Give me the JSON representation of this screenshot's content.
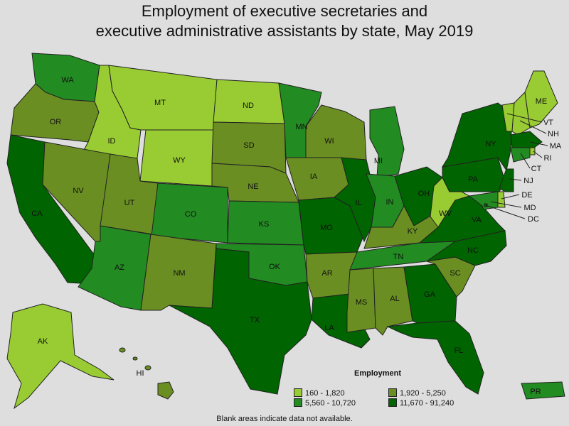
{
  "title_line1": "Employment of executive secretaries and",
  "title_line2": "executive administrative assistants by state, May 2019",
  "legend": {
    "title": "Employment",
    "bins": [
      {
        "label": "160 - 1,820",
        "color": "#99cc33"
      },
      {
        "label": "1,920 - 5,250",
        "color": "#6b8e23"
      },
      {
        "label": "5,560 - 10,720",
        "color": "#228b22"
      },
      {
        "label": "11,670 - 91,240",
        "color": "#006400"
      }
    ]
  },
  "footnote": "Blank areas indicate data not available.",
  "states": [
    {
      "abbr": "WA",
      "bin": 2
    },
    {
      "abbr": "OR",
      "bin": 1
    },
    {
      "abbr": "CA",
      "bin": 3
    },
    {
      "abbr": "ID",
      "bin": 0
    },
    {
      "abbr": "NV",
      "bin": 1
    },
    {
      "abbr": "MT",
      "bin": 0
    },
    {
      "abbr": "WY",
      "bin": 0
    },
    {
      "abbr": "UT",
      "bin": 1
    },
    {
      "abbr": "AZ",
      "bin": 2
    },
    {
      "abbr": "CO",
      "bin": 2
    },
    {
      "abbr": "NM",
      "bin": 1
    },
    {
      "abbr": "ND",
      "bin": 0
    },
    {
      "abbr": "SD",
      "bin": 1
    },
    {
      "abbr": "NE",
      "bin": 1
    },
    {
      "abbr": "KS",
      "bin": 2
    },
    {
      "abbr": "OK",
      "bin": 2
    },
    {
      "abbr": "TX",
      "bin": 3
    },
    {
      "abbr": "MN",
      "bin": 2
    },
    {
      "abbr": "IA",
      "bin": 1
    },
    {
      "abbr": "MO",
      "bin": 3
    },
    {
      "abbr": "AR",
      "bin": 1
    },
    {
      "abbr": "LA",
      "bin": 3
    },
    {
      "abbr": "WI",
      "bin": 1
    },
    {
      "abbr": "IL",
      "bin": 3
    },
    {
      "abbr": "MI",
      "bin": 2
    },
    {
      "abbr": "IN",
      "bin": 2
    },
    {
      "abbr": "OH",
      "bin": 3
    },
    {
      "abbr": "KY",
      "bin": 1
    },
    {
      "abbr": "TN",
      "bin": 2
    },
    {
      "abbr": "MS",
      "bin": 1
    },
    {
      "abbr": "AL",
      "bin": 1
    },
    {
      "abbr": "GA",
      "bin": 3
    },
    {
      "abbr": "FL",
      "bin": 3
    },
    {
      "abbr": "SC",
      "bin": 1
    },
    {
      "abbr": "NC",
      "bin": 3
    },
    {
      "abbr": "VA",
      "bin": 3
    },
    {
      "abbr": "WV",
      "bin": 0
    },
    {
      "abbr": "PA",
      "bin": 3
    },
    {
      "abbr": "NY",
      "bin": 3
    },
    {
      "abbr": "VT",
      "bin": 0
    },
    {
      "abbr": "NH",
      "bin": 0
    },
    {
      "abbr": "ME",
      "bin": 0
    },
    {
      "abbr": "MA",
      "bin": 3
    },
    {
      "abbr": "RI",
      "bin": 0
    },
    {
      "abbr": "CT",
      "bin": 2
    },
    {
      "abbr": "NJ",
      "bin": 3
    },
    {
      "abbr": "DE",
      "bin": 0
    },
    {
      "abbr": "MD",
      "bin": 2
    },
    {
      "abbr": "DC",
      "bin": 3
    },
    {
      "abbr": "AK",
      "bin": 0
    },
    {
      "abbr": "HI",
      "bin": 1
    },
    {
      "abbr": "PR",
      "bin": 2
    }
  ]
}
